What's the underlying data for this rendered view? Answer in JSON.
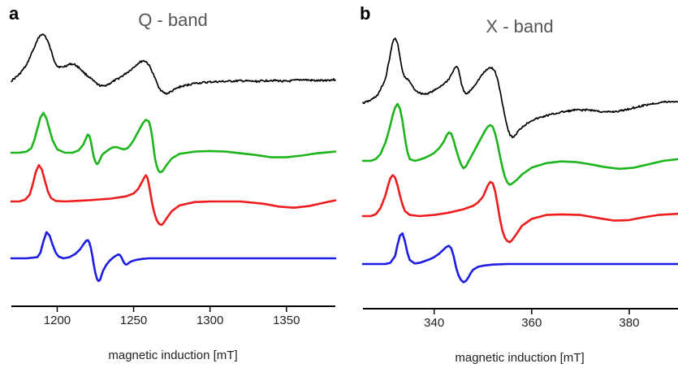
{
  "colors": {
    "experiment": "#000000",
    "sim_total": "#1db51d",
    "sim_component_1": "#ee1c1c",
    "sim_component_2": "#1c1ce6"
  },
  "chart_data": [
    {
      "panel": "a",
      "title": "Q - band",
      "type": "line",
      "xlabel": "magnetic induction [mT]",
      "xlim": [
        1170,
        1382
      ],
      "xticks": [
        1200,
        1250,
        1300,
        1350
      ],
      "grid": false,
      "series": [
        {
          "color": "#000000",
          "noisy": true,
          "x": [
            1170,
            1175,
            1180,
            1183,
            1186,
            1188,
            1190,
            1192,
            1194,
            1196,
            1198,
            1200,
            1203,
            1206,
            1209,
            1212,
            1215,
            1218,
            1221,
            1224,
            1227,
            1230,
            1234,
            1238,
            1242,
            1246,
            1250,
            1253,
            1256,
            1258,
            1260,
            1262,
            1264,
            1266,
            1268,
            1270,
            1272,
            1275,
            1280,
            1290,
            1300,
            1310,
            1320,
            1330,
            1340,
            1350,
            1360,
            1370,
            1382
          ],
          "y": [
            0.38,
            0.48,
            0.64,
            0.82,
            0.98,
            1.1,
            1.15,
            1.12,
            1.02,
            0.87,
            0.72,
            0.62,
            0.6,
            0.63,
            0.66,
            0.64,
            0.58,
            0.5,
            0.44,
            0.37,
            0.31,
            0.29,
            0.33,
            0.39,
            0.45,
            0.52,
            0.6,
            0.67,
            0.71,
            0.7,
            0.64,
            0.54,
            0.42,
            0.3,
            0.22,
            0.18,
            0.17,
            0.21,
            0.28,
            0.34,
            0.36,
            0.37,
            0.38,
            0.37,
            0.39,
            0.37,
            0.4,
            0.38,
            0.4
          ]
        },
        {
          "color": "#1db51d",
          "x": [
            1170,
            1175,
            1180,
            1183,
            1185,
            1187,
            1189,
            1191,
            1193,
            1195,
            1197,
            1200,
            1205,
            1210,
            1214,
            1217,
            1219,
            1220,
            1221,
            1222,
            1223,
            1224,
            1225,
            1226,
            1227,
            1228,
            1229,
            1230,
            1232,
            1234,
            1236,
            1238,
            1240,
            1242,
            1244,
            1246,
            1248,
            1250,
            1252,
            1254,
            1256,
            1258,
            1260,
            1261,
            1262,
            1263,
            1264,
            1265,
            1266,
            1267,
            1268,
            1269,
            1270,
            1272,
            1275,
            1280,
            1290,
            1300,
            1310,
            1320,
            1330,
            1340,
            1350,
            1360,
            1370,
            1382
          ],
          "y": [
            0.0,
            0.0,
            0.02,
            0.08,
            0.22,
            0.42,
            0.62,
            0.7,
            0.6,
            0.4,
            0.22,
            0.06,
            0.0,
            0.0,
            0.04,
            0.14,
            0.26,
            0.32,
            0.3,
            0.2,
            0.05,
            -0.08,
            -0.16,
            -0.2,
            -0.18,
            -0.12,
            -0.06,
            -0.02,
            0.02,
            0.06,
            0.09,
            0.1,
            0.09,
            0.07,
            0.06,
            0.08,
            0.14,
            0.22,
            0.32,
            0.42,
            0.52,
            0.58,
            0.55,
            0.45,
            0.3,
            0.1,
            -0.1,
            -0.22,
            -0.3,
            -0.34,
            -0.34,
            -0.32,
            -0.28,
            -0.2,
            -0.1,
            -0.02,
            0.02,
            0.03,
            0.02,
            -0.01,
            -0.04,
            -0.08,
            -0.08,
            -0.05,
            -0.01,
            0.02
          ]
        },
        {
          "color": "#ee1c1c",
          "x": [
            1170,
            1175,
            1179,
            1182,
            1184,
            1186,
            1188,
            1190,
            1192,
            1194,
            1196,
            1199,
            1205,
            1220,
            1235,
            1245,
            1250,
            1253,
            1255,
            1257,
            1258,
            1259,
            1260,
            1261,
            1262,
            1263,
            1264,
            1265,
            1266,
            1267,
            1268,
            1269,
            1270,
            1272,
            1275,
            1280,
            1290,
            1300,
            1320,
            1335,
            1345,
            1355,
            1365,
            1375,
            1382
          ],
          "y": [
            0.0,
            0.0,
            0.03,
            0.12,
            0.3,
            0.52,
            0.64,
            0.56,
            0.36,
            0.17,
            0.06,
            0.01,
            0.0,
            0.02,
            0.05,
            0.09,
            0.14,
            0.22,
            0.32,
            0.42,
            0.46,
            0.42,
            0.3,
            0.14,
            -0.02,
            -0.14,
            -0.24,
            -0.32,
            -0.37,
            -0.4,
            -0.41,
            -0.4,
            -0.36,
            -0.28,
            -0.17,
            -0.07,
            -0.01,
            0.0,
            0.0,
            -0.04,
            -0.09,
            -0.11,
            -0.08,
            -0.02,
            0.02
          ]
        },
        {
          "color": "#1c1ce6",
          "x": [
            1170,
            1180,
            1187,
            1189,
            1191,
            1193,
            1195,
            1197,
            1199,
            1201,
            1204,
            1208,
            1212,
            1215,
            1217,
            1219,
            1220,
            1221,
            1222,
            1223,
            1224,
            1225,
            1226,
            1227,
            1228,
            1229,
            1230,
            1232,
            1234,
            1236,
            1238,
            1240,
            1241,
            1242,
            1243,
            1244,
            1245,
            1246,
            1247,
            1248,
            1250,
            1253,
            1256,
            1260,
            1270,
            1290,
            1320,
            1350,
            1382
          ],
          "y": [
            0.0,
            0.0,
            0.02,
            0.1,
            0.3,
            0.46,
            0.4,
            0.24,
            0.1,
            0.03,
            0.0,
            0.02,
            0.08,
            0.16,
            0.24,
            0.31,
            0.32,
            0.28,
            0.18,
            0.04,
            -0.12,
            -0.26,
            -0.36,
            -0.4,
            -0.38,
            -0.3,
            -0.22,
            -0.12,
            -0.05,
            0.0,
            0.04,
            0.07,
            0.06,
            0.02,
            -0.04,
            -0.09,
            -0.11,
            -0.1,
            -0.08,
            -0.06,
            -0.04,
            -0.02,
            -0.01,
            0.0,
            0.0,
            0.0,
            0.0,
            0.0,
            0.0
          ]
        }
      ]
    },
    {
      "panel": "b",
      "title": "X - band",
      "type": "line",
      "xlabel": "magnetic induction [mT]",
      "xlim": [
        325.4,
        390
      ],
      "xticks": [
        340,
        360,
        380
      ],
      "grid": false,
      "series": [
        {
          "color": "#000000",
          "noisy": true,
          "x": [
            325.4,
            327,
            328.5,
            330,
            331,
            331.5,
            332,
            332.5,
            333,
            333.5,
            334,
            334.5,
            335,
            335.5,
            336,
            337,
            338,
            339,
            340,
            341,
            342,
            343,
            344,
            344.5,
            345,
            345.5,
            346,
            346.5,
            347,
            348,
            349,
            350,
            351,
            351.5,
            352,
            352.5,
            353,
            353.5,
            354,
            354.5,
            355,
            355.5,
            356,
            356.5,
            357,
            358,
            360,
            363,
            366,
            369,
            372,
            375,
            378,
            381,
            384,
            387,
            390
          ],
          "y": [
            0.0,
            0.05,
            0.15,
            0.42,
            0.85,
            1.08,
            1.16,
            1.05,
            0.8,
            0.56,
            0.45,
            0.42,
            0.38,
            0.3,
            0.24,
            0.18,
            0.16,
            0.18,
            0.22,
            0.28,
            0.34,
            0.42,
            0.58,
            0.66,
            0.58,
            0.38,
            0.22,
            0.16,
            0.18,
            0.28,
            0.4,
            0.52,
            0.6,
            0.63,
            0.61,
            0.55,
            0.42,
            0.22,
            0.0,
            -0.22,
            -0.42,
            -0.55,
            -0.6,
            -0.58,
            -0.52,
            -0.42,
            -0.3,
            -0.22,
            -0.16,
            -0.12,
            -0.12,
            -0.16,
            -0.14,
            -0.08,
            -0.02,
            0.02,
            0.03
          ]
        },
        {
          "color": "#1db51d",
          "x": [
            325.4,
            327,
            328,
            329,
            330,
            330.5,
            331,
            331.5,
            332,
            332.5,
            333,
            333.5,
            334,
            334.5,
            335,
            336,
            337,
            338,
            339,
            340,
            341,
            342,
            342.5,
            343,
            343.5,
            344,
            344.5,
            345,
            345.5,
            346,
            346.5,
            347,
            347.5,
            348,
            348.5,
            349,
            349.5,
            350,
            350.5,
            351,
            351.5,
            352,
            352.5,
            353,
            353.5,
            354,
            354.5,
            355,
            355.5,
            356,
            357,
            358,
            360,
            363,
            366,
            369,
            372,
            375,
            378,
            381,
            384,
            387,
            390
          ],
          "y": [
            0.0,
            0.0,
            0.03,
            0.12,
            0.32,
            0.46,
            0.62,
            0.8,
            0.94,
            1.0,
            0.92,
            0.7,
            0.4,
            0.16,
            0.03,
            0.0,
            0.02,
            0.05,
            0.09,
            0.14,
            0.22,
            0.34,
            0.44,
            0.5,
            0.48,
            0.36,
            0.2,
            0.06,
            -0.06,
            -0.13,
            -0.1,
            -0.02,
            0.06,
            0.14,
            0.22,
            0.3,
            0.38,
            0.46,
            0.54,
            0.6,
            0.63,
            0.6,
            0.48,
            0.3,
            0.08,
            -0.12,
            -0.28,
            -0.38,
            -0.42,
            -0.4,
            -0.33,
            -0.24,
            -0.12,
            -0.04,
            -0.01,
            -0.02,
            -0.06,
            -0.11,
            -0.14,
            -0.12,
            -0.06,
            0.0,
            0.03
          ]
        },
        {
          "color": "#ee1c1c",
          "x": [
            325.4,
            327,
            328,
            329,
            330,
            330.5,
            331,
            331.5,
            332,
            332.5,
            333,
            333.5,
            334,
            335,
            337,
            340,
            343,
            346,
            348,
            349,
            350,
            350.5,
            351,
            351.5,
            352,
            352.5,
            353,
            353.5,
            354,
            354.5,
            355,
            355.5,
            356,
            357,
            358,
            360,
            363,
            366,
            370,
            374,
            377,
            380,
            383,
            386,
            390
          ],
          "y": [
            0.0,
            0.0,
            0.03,
            0.14,
            0.36,
            0.52,
            0.66,
            0.72,
            0.68,
            0.54,
            0.36,
            0.2,
            0.09,
            0.02,
            0.0,
            0.02,
            0.06,
            0.12,
            0.18,
            0.24,
            0.34,
            0.44,
            0.54,
            0.6,
            0.58,
            0.44,
            0.2,
            -0.06,
            -0.26,
            -0.38,
            -0.44,
            -0.46,
            -0.42,
            -0.3,
            -0.17,
            -0.05,
            0.02,
            0.03,
            0.02,
            -0.04,
            -0.08,
            -0.07,
            -0.02,
            0.02,
            0.04
          ]
        },
        {
          "color": "#1c1ce6",
          "x": [
            325.4,
            330,
            331,
            332,
            332.5,
            333,
            333.5,
            334,
            334.5,
            335,
            336,
            337,
            338,
            339,
            340,
            341,
            342,
            342.5,
            343,
            343.5,
            344,
            344.5,
            345,
            345.5,
            346,
            346.5,
            347,
            347.5,
            348,
            349,
            350,
            352,
            355,
            360,
            370,
            380,
            390
          ],
          "y": [
            0.0,
            0.0,
            0.02,
            0.14,
            0.34,
            0.5,
            0.54,
            0.4,
            0.2,
            0.07,
            0.01,
            0.02,
            0.05,
            0.08,
            0.12,
            0.18,
            0.26,
            0.3,
            0.32,
            0.28,
            0.14,
            -0.06,
            -0.2,
            -0.28,
            -0.32,
            -0.3,
            -0.24,
            -0.16,
            -0.1,
            -0.05,
            -0.03,
            -0.01,
            0.0,
            0.0,
            0.0,
            0.0,
            0.0
          ]
        }
      ]
    }
  ]
}
